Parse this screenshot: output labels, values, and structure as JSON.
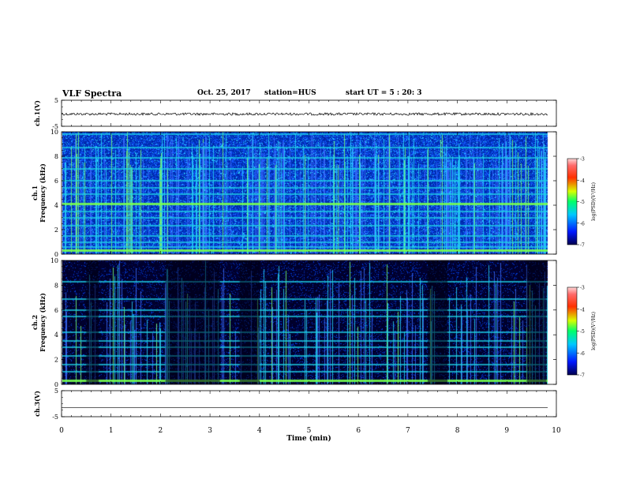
{
  "header": {
    "title": "VLF Spectra",
    "date": "Oct. 25, 2017",
    "station": "station=HUS",
    "start": "start  UT  =   5  : 20: 3"
  },
  "chart_data": {
    "type": "heatmap",
    "panels": [
      {
        "id": "ch1-waveform",
        "ylabel": "ch.1(V)",
        "ylim": [
          -5,
          5
        ],
        "yticks": [
          "5",
          "-5"
        ],
        "kind": "line",
        "level": -0.3
      },
      {
        "id": "ch1-spectrogram",
        "ylabel": "ch.1",
        "ylabel2": "Frequency  (kHz)",
        "ylim": [
          0,
          10
        ],
        "yticks": [
          "0",
          "2",
          "4",
          "6",
          "8",
          "10"
        ],
        "kind": "spectrogram",
        "bands_khz": [
          0.3,
          0.6,
          1.0,
          1.5,
          2.3,
          3.0,
          3.5,
          4.1,
          4.9,
          5.4,
          6.0,
          7.0,
          7.9,
          8.7,
          9.8
        ],
        "colorbar": {
          "label": "log(PSD)(V²/Hz)",
          "range": [
            -7,
            -3
          ],
          "ticks": [
            "-3",
            "-4",
            "-5",
            "-6",
            "-7"
          ]
        }
      },
      {
        "id": "ch2-spectrogram",
        "ylabel": "ch.2",
        "ylabel2": "Frequency  (kHz)",
        "ylim": [
          0,
          10
        ],
        "yticks": [
          "0",
          "2",
          "4",
          "6",
          "8",
          "10"
        ],
        "kind": "spectrogram",
        "bands_khz": [
          0.3,
          1.0,
          1.6,
          2.3,
          3.0,
          3.5,
          4.2,
          5.5,
          6.0,
          6.9,
          8.3
        ],
        "colorbar": {
          "label": "log(PSD)(V²/Hz)",
          "range": [
            -7,
            -3
          ],
          "ticks": [
            "-3",
            "-4",
            "-5",
            "-6",
            "-7"
          ]
        }
      },
      {
        "id": "ch3-waveform",
        "ylabel": "ch.3(V)",
        "ylim": [
          -5,
          5
        ],
        "yticks": [
          "5",
          "-5"
        ],
        "kind": "line",
        "level": -1.5
      }
    ],
    "x_axis": {
      "label": "Time  (min)",
      "range": [
        0,
        10
      ],
      "ticks": [
        "0",
        "1",
        "2",
        "3",
        "4",
        "5",
        "6",
        "7",
        "8",
        "9",
        "10"
      ],
      "data_end": 9.83
    },
    "colors": {
      "low": "#00006a",
      "mid_low": "#1450ff",
      "mid": "#22d6d0",
      "mid_high": "#7cff52",
      "high": "#ff2200"
    }
  }
}
